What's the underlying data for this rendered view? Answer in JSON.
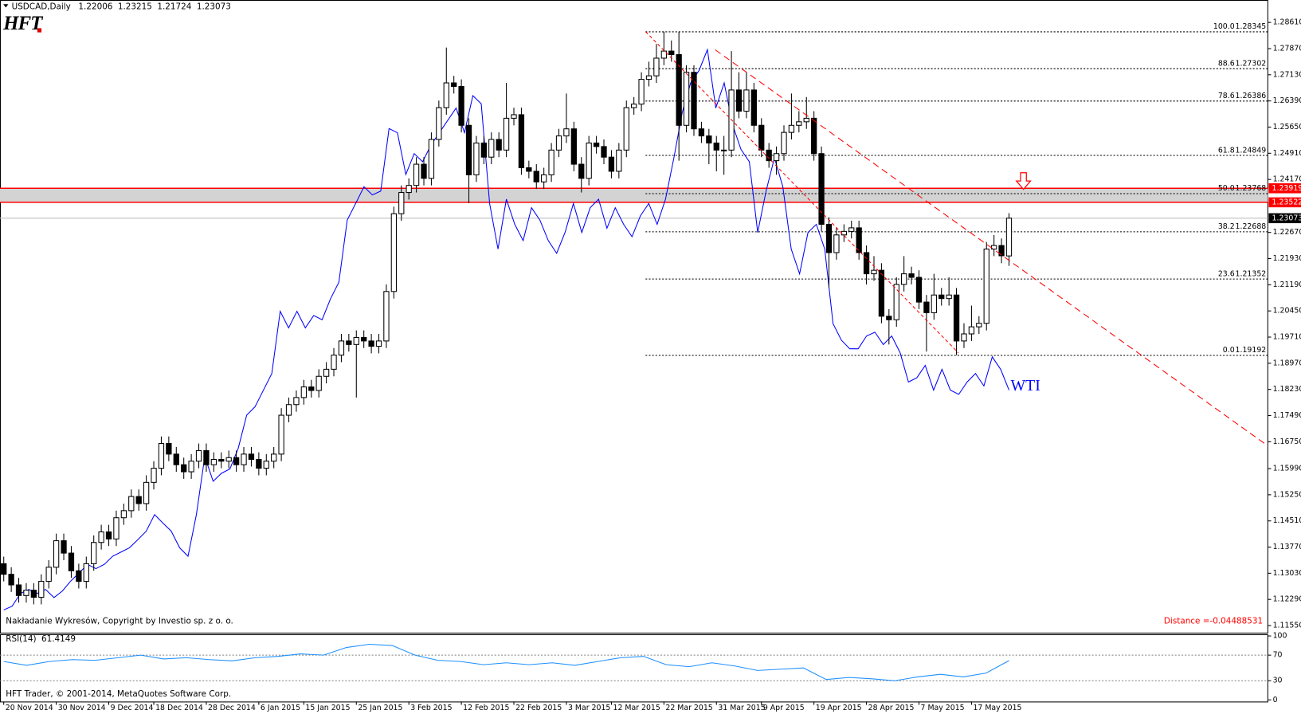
{
  "chart_data": {
    "type": "candlestick",
    "symbol": "USDCAD,Daily",
    "logo": "HFT",
    "copyright": "Nakładanie Wykresów, Copyright by Investio sp. z o. o.",
    "distance_label": "Distance =",
    "distance": -0.04488531,
    "footer": "HFT Trader, © 2001-2014, MetaQuotes Software Corp.",
    "bull_color": "#ffffff",
    "bear_color": "#000000",
    "xlim": [
      -0.5,
      168.5
    ],
    "ylim": [
      1.1135,
      1.2901
    ],
    "candles": [
      [
        1.133,
        1.135,
        1.128,
        1.13
      ],
      [
        1.13,
        1.132,
        1.125,
        1.127
      ],
      [
        1.127,
        1.129,
        1.122,
        1.124
      ],
      [
        1.124,
        1.1275,
        1.122,
        1.1255
      ],
      [
        1.1255,
        1.1275,
        1.1215,
        1.1235
      ],
      [
        1.1235,
        1.13,
        1.1215,
        1.128
      ],
      [
        1.128,
        1.134,
        1.126,
        1.132
      ],
      [
        1.132,
        1.1415,
        1.13,
        1.1395
      ],
      [
        1.1395,
        1.1415,
        1.134,
        1.136
      ],
      [
        1.136,
        1.138,
        1.129,
        1.131
      ],
      [
        1.131,
        1.133,
        1.126,
        1.128
      ],
      [
        1.128,
        1.135,
        1.126,
        1.133
      ],
      [
        1.133,
        1.141,
        1.131,
        1.139
      ],
      [
        1.139,
        1.144,
        1.137,
        1.142
      ],
      [
        1.142,
        1.144,
        1.138,
        1.14
      ],
      [
        1.14,
        1.148,
        1.138,
        1.146
      ],
      [
        1.146,
        1.15,
        1.144,
        1.148
      ],
      [
        1.148,
        1.154,
        1.146,
        1.152
      ],
      [
        1.152,
        1.154,
        1.148,
        1.15
      ],
      [
        1.15,
        1.158,
        1.148,
        1.156
      ],
      [
        1.156,
        1.162,
        1.154,
        1.16
      ],
      [
        1.16,
        1.169,
        1.158,
        1.167
      ],
      [
        1.167,
        1.169,
        1.162,
        1.164
      ],
      [
        1.164,
        1.166,
        1.159,
        1.161
      ],
      [
        1.161,
        1.163,
        1.157,
        1.159
      ],
      [
        1.159,
        1.164,
        1.157,
        1.162
      ],
      [
        1.162,
        1.167,
        1.16,
        1.165
      ],
      [
        1.165,
        1.167,
        1.159,
        1.161
      ],
      [
        1.161,
        1.1645,
        1.159,
        1.1625
      ],
      [
        1.1625,
        1.1645,
        1.16,
        1.162
      ],
      [
        1.162,
        1.165,
        1.16,
        1.163
      ],
      [
        1.163,
        1.165,
        1.159,
        1.161
      ],
      [
        1.161,
        1.166,
        1.159,
        1.164
      ],
      [
        1.164,
        1.166,
        1.1605,
        1.1625
      ],
      [
        1.1625,
        1.1645,
        1.158,
        1.16
      ],
      [
        1.16,
        1.164,
        1.158,
        1.162
      ],
      [
        1.162,
        1.166,
        1.16,
        1.164
      ],
      [
        1.164,
        1.177,
        1.162,
        1.175
      ],
      [
        1.175,
        1.18,
        1.173,
        1.178
      ],
      [
        1.178,
        1.182,
        1.176,
        1.18
      ],
      [
        1.18,
        1.185,
        1.178,
        1.183
      ],
      [
        1.183,
        1.185,
        1.18,
        1.182
      ],
      [
        1.182,
        1.188,
        1.18,
        1.186
      ],
      [
        1.186,
        1.19,
        1.184,
        1.188
      ],
      [
        1.188,
        1.194,
        1.186,
        1.192
      ],
      [
        1.192,
        1.198,
        1.19,
        1.196
      ],
      [
        1.196,
        1.198,
        1.193,
        1.195
      ],
      [
        1.195,
        1.199,
        1.18,
        1.197
      ],
      [
        1.197,
        1.199,
        1.194,
        1.196
      ],
      [
        1.196,
        1.198,
        1.1925,
        1.1945
      ],
      [
        1.1945,
        1.198,
        1.1925,
        1.196
      ],
      [
        1.196,
        1.212,
        1.194,
        1.21
      ],
      [
        1.21,
        1.234,
        1.208,
        1.232
      ],
      [
        1.232,
        1.24,
        1.23,
        1.238
      ],
      [
        1.238,
        1.242,
        1.236,
        1.24
      ],
      [
        1.24,
        1.248,
        1.238,
        1.246
      ],
      [
        1.246,
        1.248,
        1.24,
        1.242
      ],
      [
        1.242,
        1.255,
        1.24,
        1.253
      ],
      [
        1.253,
        1.264,
        1.251,
        1.262
      ],
      [
        1.262,
        1.279,
        1.26,
        1.269
      ],
      [
        1.269,
        1.271,
        1.266,
        1.268
      ],
      [
        1.268,
        1.27,
        1.255,
        1.257
      ],
      [
        1.257,
        1.259,
        1.235,
        1.243
      ],
      [
        1.243,
        1.254,
        1.241,
        1.252
      ],
      [
        1.252,
        1.254,
        1.246,
        1.248
      ],
      [
        1.248,
        1.255,
        1.246,
        1.253
      ],
      [
        1.253,
        1.255,
        1.248,
        1.25
      ],
      [
        1.25,
        1.269,
        1.248,
        1.259
      ],
      [
        1.259,
        1.262,
        1.257,
        1.26
      ],
      [
        1.26,
        1.262,
        1.243,
        1.245
      ],
      [
        1.245,
        1.247,
        1.242,
        1.244
      ],
      [
        1.244,
        1.246,
        1.239,
        1.241
      ],
      [
        1.241,
        1.245,
        1.239,
        1.243
      ],
      [
        1.243,
        1.252,
        1.241,
        1.25
      ],
      [
        1.25,
        1.256,
        1.248,
        1.254
      ],
      [
        1.254,
        1.266,
        1.252,
        1.256
      ],
      [
        1.256,
        1.258,
        1.244,
        1.246
      ],
      [
        1.246,
        1.248,
        1.238,
        1.242
      ],
      [
        1.242,
        1.254,
        1.24,
        1.252
      ],
      [
        1.252,
        1.254,
        1.249,
        1.251
      ],
      [
        1.251,
        1.253,
        1.246,
        1.248
      ],
      [
        1.248,
        1.25,
        1.242,
        1.244
      ],
      [
        1.244,
        1.252,
        1.242,
        1.25
      ],
      [
        1.25,
        1.264,
        1.248,
        1.262
      ],
      [
        1.262,
        1.265,
        1.26,
        1.263
      ],
      [
        1.263,
        1.272,
        1.261,
        1.27
      ],
      [
        1.27,
        1.275,
        1.268,
        1.271
      ],
      [
        1.271,
        1.28,
        1.269,
        1.276
      ],
      [
        1.276,
        1.2835,
        1.274,
        1.278
      ],
      [
        1.278,
        1.281,
        1.275,
        1.277
      ],
      [
        1.277,
        1.2835,
        1.247,
        1.257
      ],
      [
        1.257,
        1.274,
        1.255,
        1.272
      ],
      [
        1.272,
        1.274,
        1.254,
        1.256
      ],
      [
        1.256,
        1.258,
        1.252,
        1.254
      ],
      [
        1.254,
        1.256,
        1.246,
        1.252
      ],
      [
        1.252,
        1.254,
        1.244,
        1.25
      ],
      [
        1.25,
        1.254,
        1.243,
        1.25
      ],
      [
        1.25,
        1.278,
        1.248,
        1.267
      ],
      [
        1.267,
        1.272,
        1.259,
        1.261
      ],
      [
        1.261,
        1.272,
        1.259,
        1.267
      ],
      [
        1.267,
        1.269,
        1.255,
        1.257
      ],
      [
        1.257,
        1.259,
        1.248,
        1.25
      ],
      [
        1.25,
        1.252,
        1.245,
        1.247
      ],
      [
        1.247,
        1.251,
        1.243,
        1.249
      ],
      [
        1.249,
        1.257,
        1.247,
        1.255
      ],
      [
        1.255,
        1.266,
        1.253,
        1.257
      ],
      [
        1.257,
        1.261,
        1.255,
        1.258
      ],
      [
        1.258,
        1.265,
        1.256,
        1.259
      ],
      [
        1.259,
        1.261,
        1.247,
        1.249
      ],
      [
        1.249,
        1.251,
        1.227,
        1.229
      ],
      [
        1.229,
        1.231,
        1.211,
        1.221
      ],
      [
        1.221,
        1.228,
        1.219,
        1.226
      ],
      [
        1.226,
        1.229,
        1.224,
        1.227
      ],
      [
        1.227,
        1.23,
        1.225,
        1.228
      ],
      [
        1.228,
        1.23,
        1.219,
        1.221
      ],
      [
        1.221,
        1.223,
        1.212,
        1.215
      ],
      [
        1.215,
        1.22,
        1.213,
        1.216
      ],
      [
        1.216,
        1.218,
        1.201,
        1.203
      ],
      [
        1.203,
        1.205,
        1.195,
        1.202
      ],
      [
        1.202,
        1.214,
        1.2,
        1.212
      ],
      [
        1.212,
        1.22,
        1.21,
        1.215
      ],
      [
        1.215,
        1.217,
        1.212,
        1.214
      ],
      [
        1.214,
        1.216,
        1.205,
        1.207
      ],
      [
        1.207,
        1.209,
        1.193,
        1.204
      ],
      [
        1.204,
        1.215,
        1.202,
        1.209
      ],
      [
        1.209,
        1.211,
        1.206,
        1.208
      ],
      [
        1.208,
        1.214,
        1.206,
        1.209
      ],
      [
        1.209,
        1.211,
        1.192,
        1.196
      ],
      [
        1.196,
        1.201,
        1.194,
        1.198
      ],
      [
        1.198,
        1.206,
        1.196,
        1.2
      ],
      [
        1.2,
        1.203,
        1.198,
        1.201
      ],
      [
        1.201,
        1.224,
        1.199,
        1.222
      ],
      [
        1.222,
        1.226,
        1.22,
        1.223
      ],
      [
        1.223,
        1.225,
        1.218,
        1.2201
      ],
      [
        1.22006,
        1.23215,
        1.21724,
        1.23073
      ]
    ],
    "yticks": [
      {
        "value": 1.2861,
        "label": "1.28610"
      },
      {
        "value": 1.2787,
        "label": "1.27870"
      },
      {
        "value": 1.2713,
        "label": "1.27130"
      },
      {
        "value": 1.2639,
        "label": "1.26390"
      },
      {
        "value": 1.2565,
        "label": "1.25650"
      },
      {
        "value": 1.2491,
        "label": "1.24910"
      },
      {
        "value": 1.2417,
        "label": "1.24170"
      },
      {
        "value": 1.2267,
        "label": "1.22670"
      },
      {
        "value": 1.2193,
        "label": "1.21930"
      },
      {
        "value": 1.2119,
        "label": "1.21190"
      },
      {
        "value": 1.2045,
        "label": "1.20450"
      },
      {
        "value": 1.1971,
        "label": "1.19710"
      },
      {
        "value": 1.1897,
        "label": "1.18970"
      },
      {
        "value": 1.1823,
        "label": "1.18230"
      },
      {
        "value": 1.1749,
        "label": "1.17490"
      },
      {
        "value": 1.1675,
        "label": "1.16750"
      },
      {
        "value": 1.1599,
        "label": "1.15990"
      },
      {
        "value": 1.1525,
        "label": "1.15250"
      },
      {
        "value": 1.1451,
        "label": "1.14510"
      },
      {
        "value": 1.1377,
        "label": "1.13770"
      },
      {
        "value": 1.1303,
        "label": "1.13030"
      },
      {
        "value": 1.1229,
        "label": "1.12290"
      },
      {
        "value": 1.1155,
        "label": "1.11550"
      }
    ],
    "xticks": [
      {
        "value": 0,
        "label": "20 Nov 2014"
      },
      {
        "value": 7,
        "label": "30 Nov 2014"
      },
      {
        "value": 14,
        "label": "9 Dec 2014"
      },
      {
        "value": 20,
        "label": "18 Dec 2014"
      },
      {
        "value": 27,
        "label": "28 Dec 2014"
      },
      {
        "value": 34,
        "label": "6 Jan 2015"
      },
      {
        "value": 40,
        "label": "15 Jan 2015"
      },
      {
        "value": 47,
        "label": "25 Jan 2015"
      },
      {
        "value": 54,
        "label": "3 Feb 2015"
      },
      {
        "value": 61,
        "label": "12 Feb 2015"
      },
      {
        "value": 68,
        "label": "22 Feb 2015"
      },
      {
        "value": 75,
        "label": "3 Mar 2015"
      },
      {
        "value": 81,
        "label": "12 Mar 2015"
      },
      {
        "value": 88,
        "label": "22 Mar 2015"
      },
      {
        "value": 95,
        "label": "31 Mar 2015"
      },
      {
        "value": 101,
        "label": "9 Apr 2015"
      },
      {
        "value": 108,
        "label": "19 Apr 2015"
      },
      {
        "value": 115,
        "label": "28 Apr 2015"
      },
      {
        "value": 122,
        "label": "7 May 2015"
      },
      {
        "value": 129,
        "label": "17 May 2015"
      }
    ],
    "overlay": {
      "name": "WTI",
      "color": "#0000ff",
      "values": [
        1.1199,
        1.121,
        1.1246,
        1.1257,
        1.1246,
        1.1257,
        1.1234,
        1.1253,
        1.1281,
        1.1304,
        1.1328,
        1.1316,
        1.1328,
        1.1351,
        1.1363,
        1.1375,
        1.1398,
        1.1422,
        1.1469,
        1.1445,
        1.1422,
        1.1375,
        1.1351,
        1.1469,
        1.1633,
        1.1563,
        1.1586,
        1.1598,
        1.1657,
        1.175,
        1.1774,
        1.1821,
        1.1868,
        1.2044,
        1.1997,
        1.2044,
        1.1997,
        1.2032,
        1.202,
        1.2079,
        1.2126,
        1.2302,
        1.2349,
        1.2396,
        1.2373,
        1.2384,
        1.2561,
        1.2549,
        1.2431,
        1.249,
        1.2467,
        1.2514,
        1.2549,
        1.2584,
        1.2619,
        1.2549,
        1.2654,
        1.2631,
        1.2349,
        1.222,
        1.2361,
        1.229,
        1.2244,
        1.2337,
        1.2302,
        1.2244,
        1.2208,
        1.2267,
        1.2349,
        1.2267,
        1.2337,
        1.2361,
        1.2279,
        1.2337,
        1.229,
        1.2255,
        1.2314,
        1.2349,
        1.229,
        1.2361,
        1.2478,
        1.2607,
        1.269,
        1.2725,
        1.2784,
        1.2619,
        1.269,
        1.2572,
        1.2502,
        1.2467,
        1.2267,
        1.2384,
        1.2478,
        1.2396,
        1.222,
        1.215,
        1.2267,
        1.229,
        1.222,
        1.2009,
        1.1962,
        1.1938,
        1.1938,
        1.1974,
        1.1985,
        1.195,
        1.1974,
        1.1927,
        1.1844,
        1.1856,
        1.1891,
        1.1821,
        1.188,
        1.1821,
        1.1809,
        1.1844,
        1.1868,
        1.1833,
        1.1915,
        1.188,
        1.1821
      ]
    },
    "fibonacci": {
      "color": "#000000",
      "levels": [
        {
          "level": "100.0",
          "price": 1.28345
        },
        {
          "level": "88.6",
          "price": 1.27302
        },
        {
          "level": "78.6",
          "price": 1.26386
        },
        {
          "level": "61.8",
          "price": 1.24849
        },
        {
          "level": "50.0",
          "price": 1.23768
        },
        {
          "level": "38.2",
          "price": 1.22688
        },
        {
          "level": "23.6",
          "price": 1.21352
        },
        {
          "level": "0.0",
          "price": 1.19192
        }
      ]
    },
    "zone": {
      "color": "#ff0000",
      "fill": "#d3d3d3",
      "prices": [
        1.23919,
        1.23522
      ]
    },
    "rsi": {
      "title": "RSI(14)",
      "color": "#1e90ff",
      "ylim": [
        0,
        100
      ],
      "yticks": [
        100,
        70,
        30,
        0
      ],
      "levels": [
        70,
        30
      ],
      "values": [
        60,
        54,
        60,
        63,
        62,
        66,
        70,
        64,
        66,
        63,
        61,
        66,
        68,
        72,
        70,
        82,
        87,
        85,
        70,
        62,
        60,
        55,
        58,
        55,
        58,
        54,
        60,
        66,
        68,
        55,
        52,
        58,
        53,
        46,
        48,
        50,
        32,
        35,
        33,
        30,
        36,
        40,
        36,
        42,
        61.4149
      ]
    }
  }
}
